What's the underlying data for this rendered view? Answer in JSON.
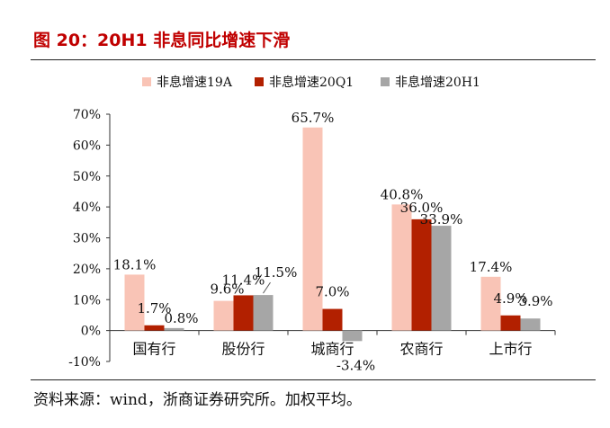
{
  "title": "图 20：20H1 非息同比增速下滑",
  "source": "资料来源：wind，浙商证券研究所。加权平均。",
  "colors": {
    "title": "#c00000",
    "series": [
      "#f9c4b6",
      "#b22000",
      "#a6a6a6"
    ]
  },
  "chart_data": {
    "type": "bar",
    "categories": [
      "国有行",
      "股份行",
      "城商行",
      "农商行",
      "上市行"
    ],
    "series": [
      {
        "name": "非息增速19A",
        "values": [
          18.1,
          9.6,
          65.7,
          40.8,
          17.4
        ],
        "labels": [
          "18.1%",
          "9.6%",
          "65.7%",
          "40.8%",
          "17.4%"
        ]
      },
      {
        "name": "非息增速20Q1",
        "values": [
          1.7,
          11.4,
          7.0,
          36.0,
          4.9
        ],
        "labels": [
          "1.7%",
          "11.4%",
          "7.0%",
          "36.0%",
          "4.9%"
        ]
      },
      {
        "name": "非息增速20H1",
        "values": [
          0.8,
          11.5,
          -3.4,
          33.9,
          3.9
        ],
        "labels": [
          "0.8%",
          "11.5%",
          "-3.4%",
          "33.9%",
          "3.9%"
        ]
      }
    ],
    "yticks": [
      "-10%",
      "0%",
      "10%",
      "20%",
      "30%",
      "40%",
      "50%",
      "60%",
      "70%"
    ],
    "ylim": [
      -10,
      70
    ],
    "legend_position": "top",
    "grid": false
  }
}
